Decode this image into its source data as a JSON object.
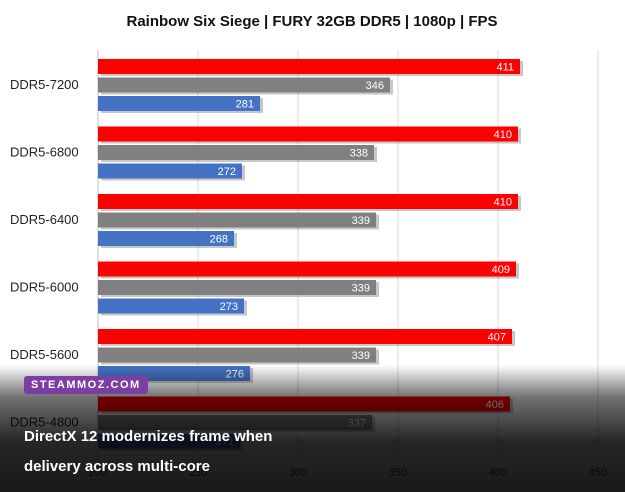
{
  "chart_data": {
    "type": "bar",
    "orientation": "horizontal",
    "title": "Rainbow Six Siege | FURY 32GB DDR5 | 1080p | FPS",
    "categories": [
      "DDR5-7200",
      "DDR5-6800",
      "DDR5-6400",
      "DDR5-6000",
      "DDR5-5600",
      "DDR5-4800"
    ],
    "series": [
      {
        "color": "#ff0000",
        "values": [
          411,
          410,
          410,
          409,
          407,
          406
        ]
      },
      {
        "color": "#808080",
        "values": [
          346,
          338,
          339,
          339,
          339,
          337
        ]
      },
      {
        "color": "#4472c4",
        "values": [
          281,
          272,
          268,
          273,
          276,
          271
        ]
      }
    ],
    "xlim": [
      200,
      450
    ],
    "xticks": [
      200,
      250,
      300,
      350,
      400,
      450
    ],
    "grid": true
  },
  "watermark": {
    "label": "STEAMMOZ.COM"
  },
  "caption": {
    "line1": "DirectX 12 modernizes frame when",
    "line2": "delivery across multi-core"
  }
}
